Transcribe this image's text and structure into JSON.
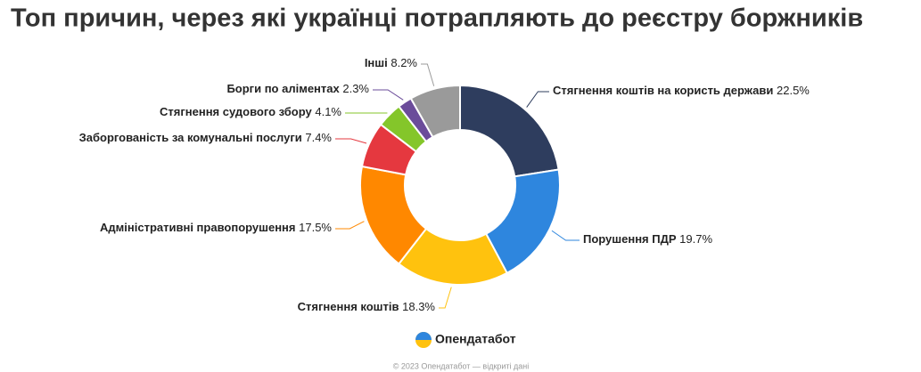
{
  "chart_data": {
    "type": "donut",
    "title": "Топ причин, через які українці потрапляють до реєстру боржників",
    "categories": [
      "Стягнення коштів на користь держави",
      "Порушення ПДР",
      "Стягнення коштів",
      "Адміністративні правопорушення",
      "Заборгованість за комунальні послуги",
      "Стягнення судового збору",
      "Борги по аліментах",
      "Інші"
    ],
    "values": [
      22.5,
      19.7,
      18.3,
      17.5,
      7.4,
      4.1,
      2.3,
      8.2
    ],
    "value_labels": [
      "22.5%",
      "19.7%",
      "18.3%",
      "17.5%",
      "7.4%",
      "4.1%",
      "2.3%",
      "8.2%"
    ],
    "colors": [
      "#2e3d5e",
      "#2e86de",
      "#ffc20e",
      "#ff8800",
      "#e5383f",
      "#84c62a",
      "#6b4c9a",
      "#9a9a9a"
    ]
  },
  "footer": {
    "brand": "Опендатабот",
    "copyright": "© 2023 Опендатабот — відкриті дані"
  }
}
